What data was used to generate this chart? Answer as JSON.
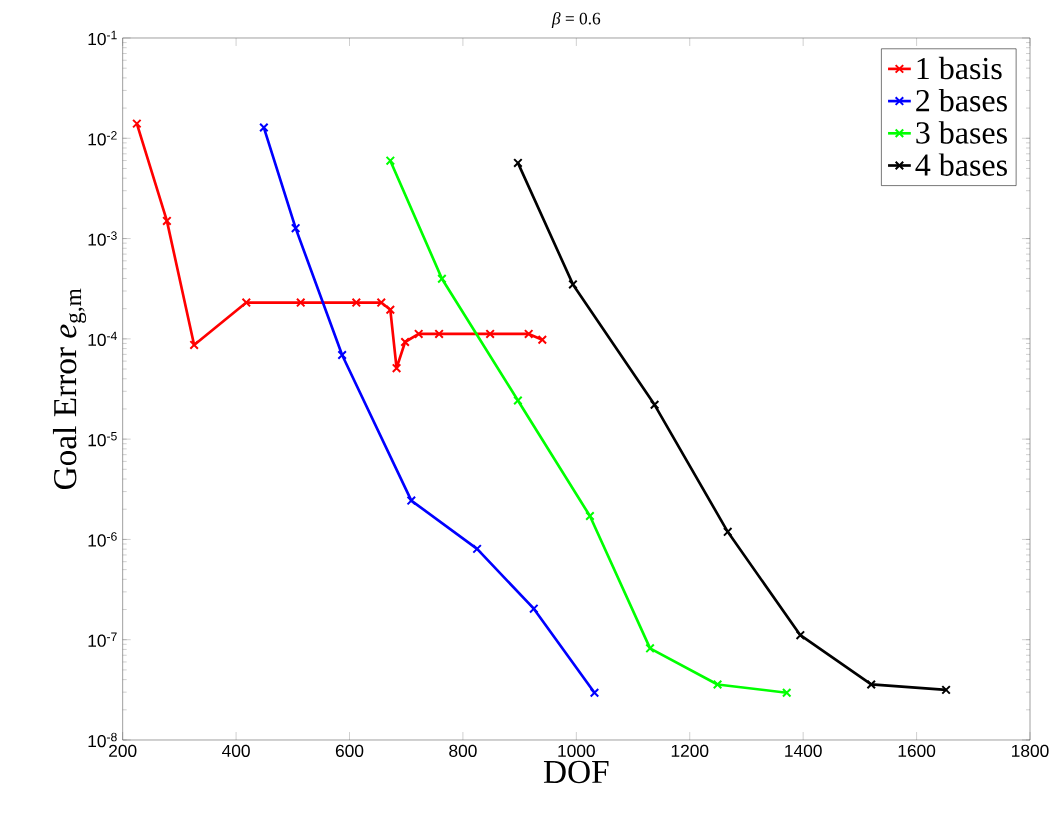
{
  "chart_data": {
    "type": "line",
    "title": "*β* = 0.6",
    "xlabel": "DOF",
    "ylabel": "Goal Error *e*$_{g,m}$",
    "log": "y",
    "marker": "cross",
    "line_style": "solid",
    "legend": "top right",
    "grid": false,
    "xlim": [
      200,
      1800
    ],
    "xticks": [
      200,
      400,
      600,
      800,
      1000,
      1200,
      1400,
      1600,
      1800
    ],
    "ylim": [
      1e-08,
      0.1
    ],
    "yticks": [
      {
        "value": 1e-08,
        "label": "10$^{-8}$"
      },
      {
        "value": 1e-07,
        "label": "10$^{-7}$"
      },
      {
        "value": 1e-06,
        "label": "10$^{-6}$"
      },
      {
        "value": 1e-05,
        "label": "10$^{-5}$"
      },
      {
        "value": 0.0001,
        "label": "10$^{-4}$"
      },
      {
        "value": 0.001,
        "label": "10$^{-3}$"
      },
      {
        "value": 0.01,
        "label": "10$^{-2}$"
      },
      {
        "value": 0.1,
        "label": "10$^{-1}$"
      }
    ],
    "series": [
      {
        "name": "1 basis",
        "color": "#ff0000",
        "x": [
          225,
          278,
          326,
          418,
          514,
          612,
          656,
          672,
          683,
          698,
          722,
          758,
          848,
          916,
          940
        ],
        "values": [
          0.014,
          0.0015,
          8.7e-05,
          0.00023,
          0.00023,
          0.00023,
          0.00023,
          0.000195,
          5.1e-05,
          9.3e-05,
          0.000112,
          0.000112,
          0.000112,
          0.000112,
          9.8e-05
        ]
      },
      {
        "name": "2 bases",
        "color": "#0000ff",
        "x": [
          449,
          505,
          587,
          709,
          825,
          925,
          1032
        ],
        "values": [
          0.0128,
          0.00127,
          6.9e-05,
          2.44e-06,
          8.05e-07,
          2.04e-07,
          2.96e-08
        ]
      },
      {
        "name": "3 bases",
        "color": "#00ff00",
        "x": [
          672,
          763,
          897,
          1024,
          1130,
          1249,
          1371
        ],
        "values": [
          0.00598,
          0.000398,
          2.43e-05,
          1.71e-06,
          8.2e-08,
          3.58e-08,
          2.96e-08
        ]
      },
      {
        "name": "4 bases",
        "color": "#000000",
        "x": [
          897,
          994,
          1138,
          1267,
          1395,
          1520,
          1652
        ],
        "values": [
          0.00568,
          0.000349,
          2.2e-05,
          1.19e-06,
          1.11e-07,
          3.58e-08,
          3.16e-08
        ]
      }
    ]
  }
}
